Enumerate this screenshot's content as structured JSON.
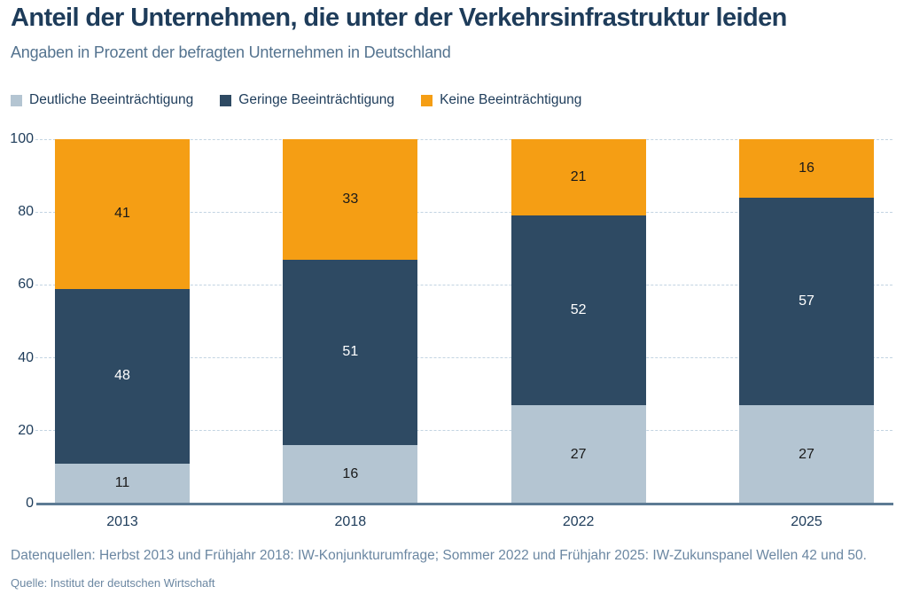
{
  "header": {
    "title": "Anteil der Unternehmen, die unter der Verkehrsinfrastruktur leiden",
    "subtitle": "Angaben in Prozent der befragten Unternehmen in Deutschland"
  },
  "chart_data": {
    "type": "bar",
    "stacked": true,
    "categories": [
      "2013",
      "2018",
      "2022",
      "2025"
    ],
    "series": [
      {
        "name": "Deutliche Beeinträchtigung",
        "color": "#b4c5d2",
        "label_color": "#1a1a1a",
        "values": [
          11,
          16,
          27,
          27
        ]
      },
      {
        "name": "Geringe Beeinträchtigung",
        "color": "#2e4a63",
        "label_color": "#ffffff",
        "values": [
          48,
          51,
          52,
          57
        ]
      },
      {
        "name": "Keine Beeinträchtigung",
        "color": "#f59e14",
        "label_color": "#1a1a1a",
        "values": [
          41,
          33,
          21,
          16
        ]
      }
    ],
    "ylim": [
      0,
      100
    ],
    "yticks": [
      0,
      20,
      40,
      60,
      80,
      100
    ],
    "grid": "horizontal-dashed",
    "legend_position": "top-left",
    "title": "Anteil der Unternehmen, die unter der Verkehrsinfrastruktur leiden",
    "xlabel": "",
    "ylabel": ""
  },
  "colors": {
    "title_text": "#1e3c5a",
    "subtitle_text": "#54738f",
    "gridline": "#c3d4e2",
    "axis_line": "#5d7b94",
    "footer_text": "#6b87a2"
  },
  "footer": {
    "datasources": "Datenquellen: Herbst 2013 und Frühjahr 2018: IW-Konjunkturumfrage; Sommer 2022 und Frühjahr 2025: IW-Zukunspanel Wellen 42 und 50.",
    "source": "Quelle: Institut der deutschen Wirtschaft"
  }
}
